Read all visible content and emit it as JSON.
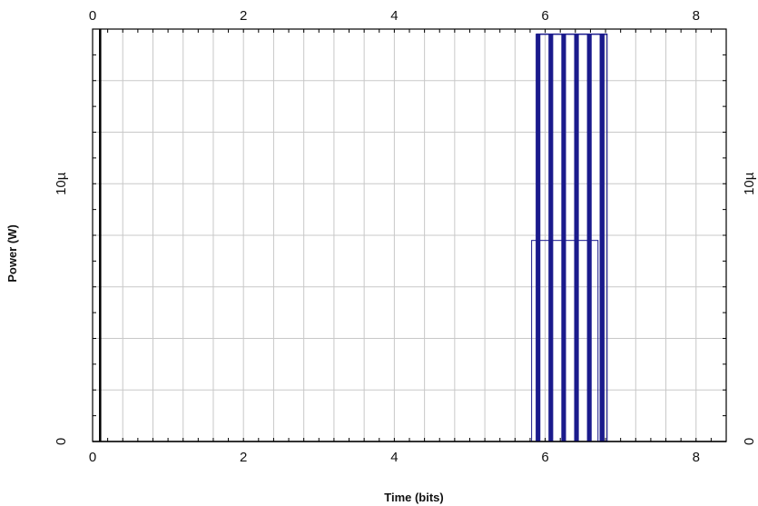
{
  "chart_data": {
    "type": "line",
    "title": "",
    "xlabel": "Time (bits)",
    "ylabel": "Power (W)",
    "xlim": [
      0,
      8.4
    ],
    "ylim": [
      0,
      1.6e-05
    ],
    "x_ticks": [
      {
        "value": 0,
        "label": "0"
      },
      {
        "value": 2,
        "label": "2"
      },
      {
        "value": 4,
        "label": "4"
      },
      {
        "value": 6,
        "label": "6"
      },
      {
        "value": 8,
        "label": "8"
      }
    ],
    "y_ticks": [
      {
        "value": 0,
        "label": "0"
      },
      {
        "value": 1e-05,
        "label": "10µ"
      }
    ],
    "x_grid_step": 0.4,
    "y_grid_step": 2e-06,
    "grid": true,
    "legend": null,
    "series": [
      {
        "color": "#1a1a8c",
        "pulses": [
          {
            "start": 5.88,
            "end": 5.93,
            "peak": 1.58e-05
          },
          {
            "start": 6.05,
            "end": 6.1,
            "peak": 1.58e-05
          },
          {
            "start": 6.22,
            "end": 6.27,
            "peak": 1.58e-05
          },
          {
            "start": 6.39,
            "end": 6.44,
            "peak": 1.58e-05
          },
          {
            "start": 6.56,
            "end": 6.61,
            "peak": 1.58e-05
          },
          {
            "start": 6.73,
            "end": 6.78,
            "peak": 1.58e-05
          }
        ],
        "shoulders": [
          {
            "start": 5.82,
            "end": 6.7,
            "level": 7.8e-06
          }
        ],
        "trailing_pulse": {
          "start": 6.73,
          "end": 6.82,
          "peak": 1.58e-05
        }
      }
    ],
    "vertical_marker": {
      "x": 0.1,
      "color": "#000000"
    }
  },
  "colors": {
    "background": "#ffffff",
    "grid": "#c8c8c8",
    "frame": "#000000",
    "trace": "#1a1a8c"
  }
}
